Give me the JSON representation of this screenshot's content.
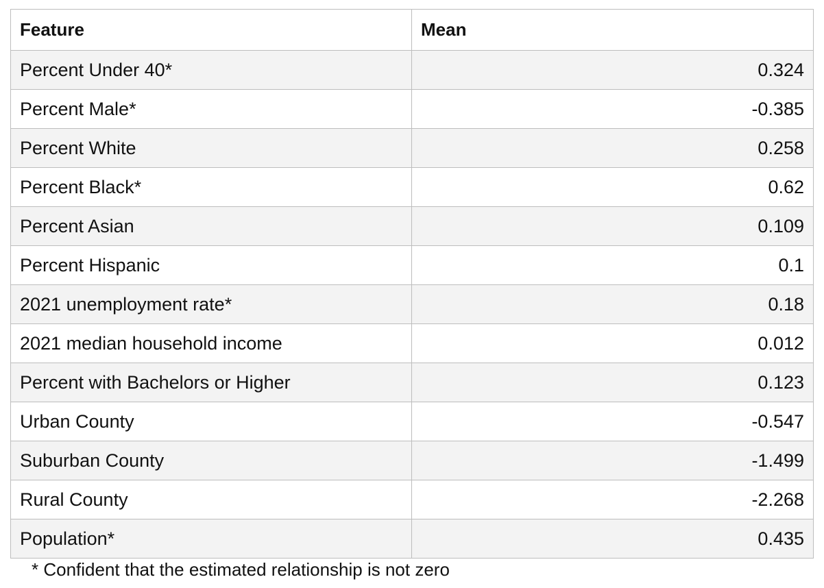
{
  "table": {
    "headers": [
      "Feature",
      "Mean"
    ],
    "rows": [
      {
        "feature": "Percent Under 40*",
        "mean": "0.324"
      },
      {
        "feature": "Percent Male*",
        "mean": "-0.385"
      },
      {
        "feature": "Percent White",
        "mean": "0.258"
      },
      {
        "feature": "Percent Black*",
        "mean": "0.62"
      },
      {
        "feature": "Percent Asian",
        "mean": "0.109"
      },
      {
        "feature": "Percent Hispanic",
        "mean": "0.1"
      },
      {
        "feature": "2021 unemployment rate*",
        "mean": "0.18"
      },
      {
        "feature": "2021 median household income",
        "mean": "0.012"
      },
      {
        "feature": "Percent with Bachelors or Higher",
        "mean": "0.123"
      },
      {
        "feature": "Urban County",
        "mean": "-0.547"
      },
      {
        "feature": "Suburban County",
        "mean": "-1.499"
      },
      {
        "feature": "Rural County",
        "mean": "-2.268"
      },
      {
        "feature": "Population*",
        "mean": "0.435"
      }
    ]
  },
  "footnote": "* Confident that the estimated relationship is not zero"
}
